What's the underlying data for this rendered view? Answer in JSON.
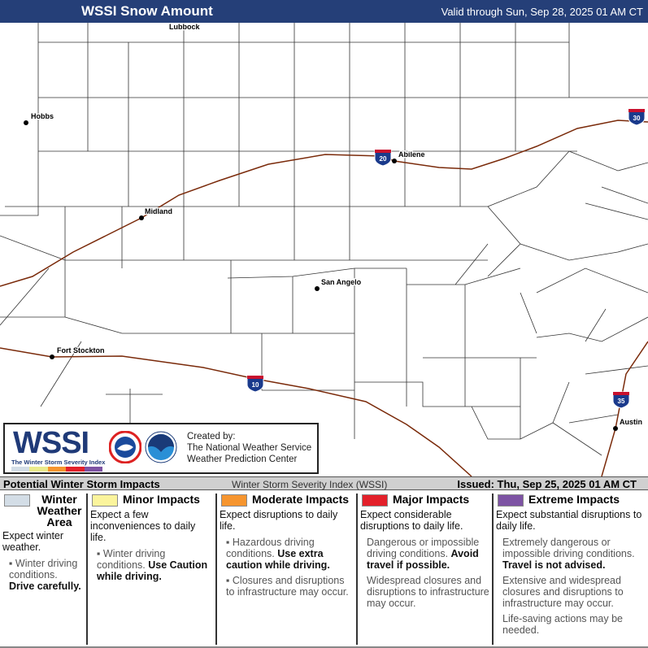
{
  "header": {
    "title": "WSSI Snow Amount",
    "valid": "Valid through Sun, Sep 28, 2025 01 AM CT"
  },
  "map": {
    "cities": [
      {
        "name": "Lubbock"
      },
      {
        "name": "Hobbs"
      },
      {
        "name": "Midland"
      },
      {
        "name": "Abilene"
      },
      {
        "name": "San Angelo"
      },
      {
        "name": "Fort Stockton"
      },
      {
        "name": "Austin"
      }
    ],
    "interstates": [
      "30",
      "20",
      "10",
      "35"
    ],
    "colors": {
      "road": "#7a2a0a",
      "county": "#333333"
    }
  },
  "logo": {
    "wssi": "WSSI",
    "subtitle": "The Winter Storm Severity Index",
    "created": [
      "Created by:",
      "The National Weather Service",
      "Weather Prediction Center"
    ],
    "nws_icon": "nws-logo",
    "noaa_icon": "noaa-logo"
  },
  "impacts": {
    "title": "Potential Winter Storm Impacts",
    "index": "Winter Storm Severity Index (WSSI)",
    "issued": "Issued: Thu, Sep 25, 2025 01 AM CT",
    "levels": [
      {
        "name": "Winter Weather Area",
        "color": "#d3dde6",
        "lead": "Expect winter weather.",
        "items": [
          {
            "text": "Winter driving conditions.",
            "bold": "Drive carefully."
          }
        ]
      },
      {
        "name": "Minor Impacts",
        "color": "#fbf49c",
        "lead": "Expect a few inconveniences to daily life.",
        "items": [
          {
            "text": "Winter driving conditions.",
            "bold": "Use Caution while driving."
          }
        ]
      },
      {
        "name": "Moderate Impacts",
        "color": "#f6952f",
        "lead": "Expect disruptions to daily life.",
        "items": [
          {
            "text": "Hazardous driving conditions.",
            "bold": "Use extra caution while driving."
          },
          {
            "text": "Closures and disruptions to infrastructure may occur.",
            "bold": ""
          }
        ]
      },
      {
        "name": "Major Impacts",
        "color": "#e3202a",
        "lead": "Expect considerable disruptions to daily life.",
        "items": [
          {
            "text": "Dangerous or impossible driving conditions.",
            "bold": "Avoid travel if possible."
          },
          {
            "text": "Widespread closures and disruptions to infrastructure may occur.",
            "bold": ""
          }
        ]
      },
      {
        "name": "Extreme Impacts",
        "color": "#7d53a3",
        "lead": "Expect substantial disruptions to daily life.",
        "items": [
          {
            "text": "Extremely dangerous or impossible driving conditions.",
            "bold": "Travel is not advised."
          },
          {
            "text": "Extensive and widespread closures and disruptions to infrastructure may occur.",
            "bold": ""
          },
          {
            "text": "Life-saving actions may be needed.",
            "bold": ""
          }
        ]
      }
    ]
  }
}
